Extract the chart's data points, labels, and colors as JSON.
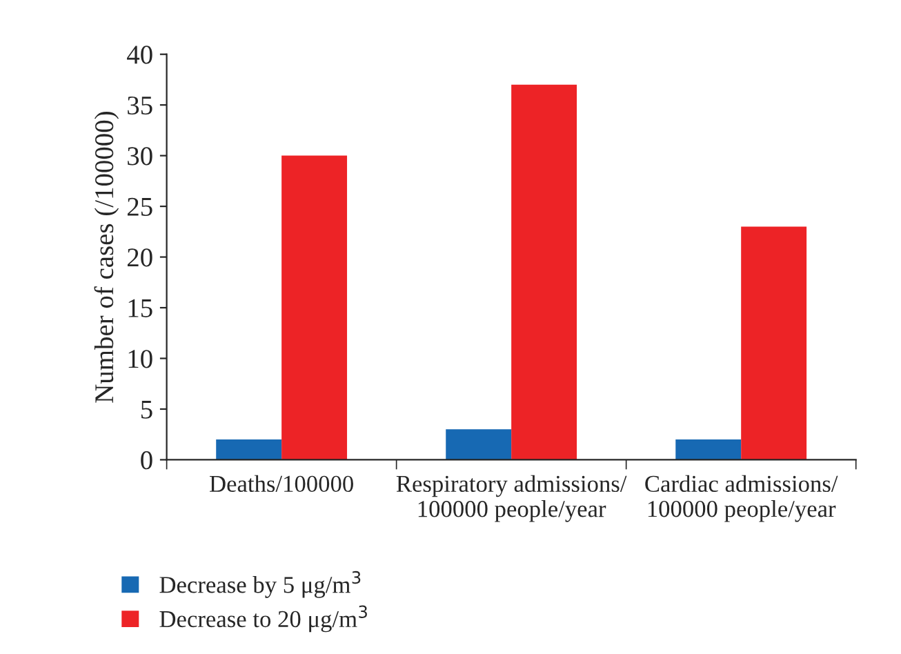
{
  "chart_data": {
    "type": "bar",
    "ylabel": "Number of cases (/100000)",
    "categories": [
      "Deaths/100000",
      "Respiratory admissions/\n100000 people/year",
      "Cardiac admissions/\n100000 people/year"
    ],
    "series": [
      {
        "name": "Decrease by 5 μg/m$^{3}$",
        "color": "#1769b3",
        "values": [
          2,
          3,
          2
        ]
      },
      {
        "name": "Decrease to 20 μg/m$^{3}$",
        "color": "#ed2326",
        "values": [
          30,
          37,
          23
        ]
      }
    ],
    "ylim": [
      0,
      40
    ],
    "yticks": [
      0,
      5,
      10,
      15,
      20,
      25,
      30,
      35,
      40
    ],
    "grid": false,
    "legend": "bottom left"
  }
}
